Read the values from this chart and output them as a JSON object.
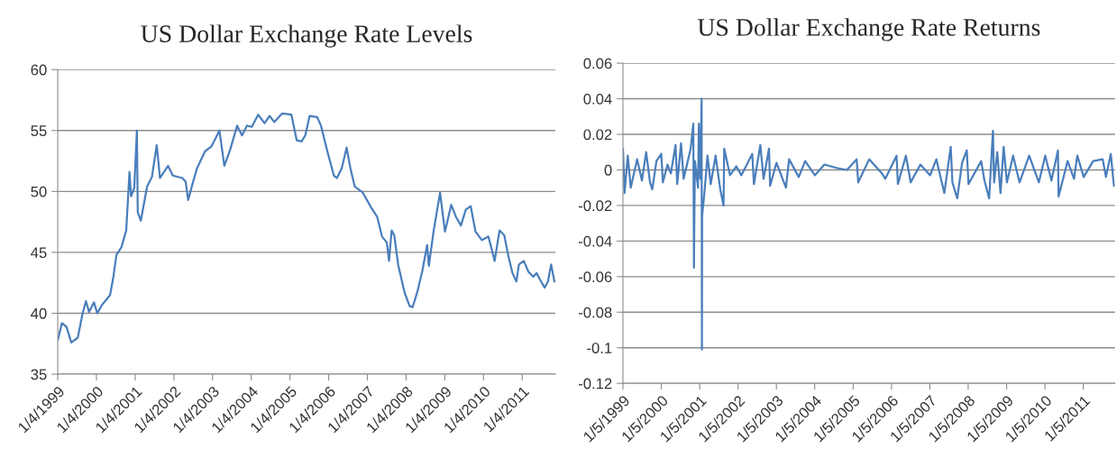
{
  "chart_data": [
    {
      "type": "line",
      "title": "US Dollar Exchange Rate Levels",
      "grid": "y",
      "x": [
        "1999-01-04",
        "1999-02-13",
        "1999-03-27",
        "1999-05-12",
        "1999-07-12",
        "1999-08-27",
        "1999-09-27",
        "1999-10-27",
        "1999-12-12",
        "2000-01-12",
        "2000-02-27",
        "2000-05-12",
        "2000-06-12",
        "2000-07-11",
        "2000-08-26",
        "2000-10-11",
        "2000-10-26",
        "2000-11-11",
        "2000-11-26",
        "2000-12-26",
        "2001-01-20",
        "2001-01-28",
        "2001-02-26",
        "2001-04-26",
        "2001-06-11",
        "2001-07-26",
        "2001-08-26",
        "2001-11-10",
        "2001-12-25",
        "2002-03-25",
        "2002-04-25",
        "2002-05-19",
        "2002-06-25",
        "2002-08-10",
        "2002-10-25",
        "2002-12-25",
        "2003-03-10",
        "2003-04-25",
        "2003-06-18",
        "2003-08-24",
        "2003-10-09",
        "2003-11-24",
        "2004-01-09",
        "2004-03-09",
        "2004-05-09",
        "2004-06-24",
        "2004-08-09",
        "2004-10-23",
        "2005-01-17",
        "2005-03-08",
        "2005-04-23",
        "2005-05-28",
        "2005-07-08",
        "2005-09-17",
        "2005-10-23",
        "2005-12-22",
        "2006-02-22",
        "2006-03-22",
        "2006-05-07",
        "2006-06-22",
        "2006-07-28",
        "2006-09-07",
        "2006-11-22",
        "2007-02-07",
        "2007-04-07",
        "2007-05-22",
        "2007-07-07",
        "2007-07-27",
        "2007-08-21",
        "2007-09-15",
        "2007-10-21",
        "2007-12-21",
        "2008-02-06",
        "2008-03-06",
        "2008-04-21",
        "2008-06-06",
        "2008-07-21",
        "2008-08-06",
        "2008-09-21",
        "2008-10-20",
        "2008-11-20",
        "2008-12-20",
        "2009-01-05",
        "2009-03-05",
        "2009-04-20",
        "2009-06-05",
        "2009-07-20",
        "2009-09-05",
        "2009-10-20",
        "2009-12-20",
        "2010-02-19",
        "2010-04-19",
        "2010-06-04",
        "2010-07-19",
        "2010-08-19",
        "2010-10-04",
        "2010-11-10",
        "2010-12-04",
        "2011-01-19",
        "2011-03-04",
        "2011-04-19",
        "2011-05-19",
        "2011-06-25",
        "2011-08-04",
        "2011-09-04",
        "2011-10-04",
        "2011-11-04"
      ],
      "series": [
        {
          "color": "#4a7ebb",
          "values": [
            37.8,
            39.2,
            38.9,
            37.6,
            38.0,
            40.0,
            41.0,
            40.1,
            40.9,
            40.0,
            40.7,
            41.5,
            43.0,
            44.8,
            45.4,
            46.8,
            49.1,
            51.6,
            49.6,
            50.3,
            55.0,
            48.3,
            47.6,
            50.4,
            51.2,
            53.8,
            51.1,
            52.1,
            51.3,
            51.1,
            50.8,
            49.3,
            50.5,
            51.9,
            53.3,
            53.7,
            55.0,
            52.1,
            53.4,
            55.4,
            54.6,
            55.4,
            55.3,
            56.3,
            55.6,
            56.2,
            55.7,
            56.4,
            56.3,
            54.2,
            54.1,
            54.6,
            56.2,
            56.1,
            55.4,
            53.3,
            51.3,
            51.1,
            51.9,
            53.6,
            51.9,
            50.4,
            49.9,
            48.7,
            47.9,
            46.3,
            45.8,
            44.3,
            46.8,
            46.4,
            44.0,
            41.7,
            40.6,
            40.5,
            41.8,
            43.5,
            45.6,
            43.9,
            46.8,
            48.3,
            49.9,
            47.8,
            46.7,
            48.9,
            47.9,
            47.2,
            48.5,
            48.8,
            46.7,
            46.0,
            46.3,
            44.3,
            46.8,
            46.4,
            45.0,
            43.3,
            42.6,
            44.0,
            44.3,
            43.4,
            43.0,
            43.3,
            42.7,
            42.1,
            42.6,
            44.0,
            42.6
          ]
        }
      ],
      "xlim": [
        "1999-01-04",
        "2011-11-13"
      ],
      "xticks": [
        {
          "value": "1999-01-04",
          "label": "1/4/1999"
        },
        {
          "value": "2000-01-04",
          "label": "1/4/2000"
        },
        {
          "value": "2001-01-04",
          "label": "1/4/2001"
        },
        {
          "value": "2002-01-04",
          "label": "1/4/2002"
        },
        {
          "value": "2003-01-04",
          "label": "1/4/2003"
        },
        {
          "value": "2004-01-04",
          "label": "1/4/2004"
        },
        {
          "value": "2005-01-04",
          "label": "1/4/2005"
        },
        {
          "value": "2006-01-04",
          "label": "1/4/2006"
        },
        {
          "value": "2007-01-04",
          "label": "1/4/2007"
        },
        {
          "value": "2008-01-04",
          "label": "1/4/2008"
        },
        {
          "value": "2009-01-04",
          "label": "1/4/2009"
        },
        {
          "value": "2010-01-04",
          "label": "1/4/2010"
        },
        {
          "value": "2011-01-04",
          "label": "1/4/2011"
        }
      ],
      "ylim": [
        35,
        60
      ],
      "yticks": [
        35,
        40,
        45,
        50,
        55,
        60
      ]
    },
    {
      "type": "line",
      "title": "US Dollar Exchange Rate Returns",
      "grid": "y",
      "x": [
        "1999-01-05",
        "1999-01-20",
        "1999-02-20",
        "1999-03-20",
        "1999-05-20",
        "1999-07-05",
        "1999-08-14",
        "1999-09-20",
        "1999-10-11",
        "1999-11-20",
        "2000-01-05",
        "2000-01-20",
        "2000-03-05",
        "2000-04-05",
        "2000-05-20",
        "2000-06-05",
        "2000-07-11",
        "2000-08-05",
        "2000-10-11",
        "2000-11-05",
        "2000-11-11",
        "2000-11-20",
        "2000-12-20",
        "2000-12-28",
        "2001-01-11",
        "2001-01-23",
        "2001-01-26",
        "2001-01-28",
        "2001-02-20",
        "2001-03-20",
        "2001-04-20",
        "2001-06-05",
        "2001-07-20",
        "2001-08-20",
        "2001-08-26",
        "2001-10-20",
        "2001-12-20",
        "2002-02-05",
        "2002-05-20",
        "2002-06-05",
        "2002-08-05",
        "2002-09-05",
        "2002-10-27",
        "2002-11-06",
        "2003-01-06",
        "2003-04-06",
        "2003-05-06",
        "2003-08-06",
        "2003-10-06",
        "2004-01-06",
        "2004-04-06",
        "2004-08-07",
        "2004-11-07",
        "2005-02-07",
        "2005-02-22",
        "2005-06-07",
        "2005-10-07",
        "2005-11-07",
        "2006-02-22",
        "2006-03-07",
        "2006-05-22",
        "2006-07-07",
        "2006-10-07",
        "2007-01-08",
        "2007-03-08",
        "2007-05-23",
        "2007-07-23",
        "2007-08-08",
        "2007-09-23",
        "2007-11-08",
        "2007-12-23",
        "2008-01-08",
        "2008-05-08",
        "2008-06-08",
        "2008-07-23",
        "2008-08-28",
        "2008-09-08",
        "2008-10-08",
        "2008-11-08",
        "2008-12-08",
        "2009-01-08",
        "2009-03-08",
        "2009-05-08",
        "2009-08-08",
        "2009-11-08",
        "2010-01-08",
        "2010-03-08",
        "2010-05-09",
        "2010-05-15",
        "2010-08-09",
        "2010-10-09",
        "2010-11-09",
        "2011-01-09",
        "2011-04-09",
        "2011-07-09",
        "2011-08-09",
        "2011-09-24",
        "2011-10-24"
      ],
      "series": [
        {
          "color": "#4a7ebb",
          "values": [
            0.012,
            -0.013,
            0.008,
            -0.01,
            0.006,
            -0.006,
            0.01,
            -0.007,
            -0.011,
            0.005,
            0.009,
            -0.007,
            0.003,
            -0.002,
            0.014,
            -0.008,
            0.015,
            -0.005,
            0.012,
            0.026,
            -0.055,
            0.005,
            -0.01,
            0.026,
            -0.005,
            0.04,
            -0.101,
            -0.026,
            -0.012,
            0.008,
            -0.008,
            0.008,
            -0.011,
            -0.02,
            0.012,
            -0.003,
            0.002,
            -0.003,
            0.009,
            -0.008,
            0.014,
            -0.005,
            0.012,
            -0.009,
            0.004,
            -0.01,
            0.006,
            -0.004,
            0.005,
            -0.003,
            0.003,
            0.001,
            0.0,
            0.006,
            -0.007,
            0.006,
            -0.002,
            -0.005,
            0.008,
            -0.008,
            0.008,
            -0.007,
            0.003,
            -0.003,
            0.006,
            -0.013,
            0.013,
            -0.007,
            -0.016,
            0.004,
            0.011,
            -0.008,
            0.005,
            -0.006,
            -0.016,
            0.022,
            -0.007,
            0.01,
            -0.013,
            0.013,
            -0.007,
            0.008,
            -0.007,
            0.008,
            -0.007,
            0.008,
            -0.006,
            0.011,
            -0.015,
            0.005,
            -0.005,
            0.008,
            -0.004,
            0.005,
            0.006,
            -0.004,
            0.009,
            -0.009
          ]
        }
      ],
      "xlim": [
        "1999-01-05",
        "2011-11-03"
      ],
      "xticks": [
        {
          "value": "1999-01-05",
          "label": "1/5/1999"
        },
        {
          "value": "2000-01-05",
          "label": "1/5/2000"
        },
        {
          "value": "2001-01-05",
          "label": "1/5/2001"
        },
        {
          "value": "2002-01-05",
          "label": "1/5/2002"
        },
        {
          "value": "2003-01-05",
          "label": "1/5/2003"
        },
        {
          "value": "2004-01-05",
          "label": "1/5/2004"
        },
        {
          "value": "2005-01-05",
          "label": "1/5/2005"
        },
        {
          "value": "2006-01-05",
          "label": "1/5/2006"
        },
        {
          "value": "2007-01-05",
          "label": "1/5/2007"
        },
        {
          "value": "2008-01-05",
          "label": "1/5/2008"
        },
        {
          "value": "2009-01-05",
          "label": "1/5/2009"
        },
        {
          "value": "2010-01-05",
          "label": "1/5/2010"
        },
        {
          "value": "2011-01-05",
          "label": "1/5/2011"
        }
      ],
      "ylim": [
        -0.12,
        0.06
      ],
      "yticks": [
        -0.12,
        -0.1,
        -0.08,
        -0.06,
        -0.04,
        -0.02,
        0,
        0.02,
        0.04,
        0.06
      ]
    }
  ]
}
